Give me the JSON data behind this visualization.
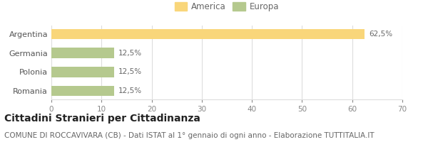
{
  "categories": [
    "Romania",
    "Polonia",
    "Germania",
    "Argentina"
  ],
  "values": [
    12.5,
    12.5,
    12.5,
    62.5
  ],
  "colors": [
    "#b5c98e",
    "#b5c98e",
    "#b5c98e",
    "#f9d67a"
  ],
  "labels": [
    "12,5%",
    "12,5%",
    "12,5%",
    "62,5%"
  ],
  "xlim": [
    0,
    70
  ],
  "xticks": [
    0,
    10,
    20,
    30,
    40,
    50,
    60,
    70
  ],
  "legend_items": [
    {
      "label": "America",
      "color": "#f9d67a"
    },
    {
      "label": "Europa",
      "color": "#b5c98e"
    }
  ],
  "title": "Cittadini Stranieri per Cittadinanza",
  "subtitle": "COMUNE DI ROCCAVIVARA (CB) - Dati ISTAT al 1° gennaio di ogni anno - Elaborazione TUTTITALIA.IT",
  "title_fontsize": 10,
  "subtitle_fontsize": 7.5,
  "bar_height": 0.55,
  "background_color": "#ffffff",
  "grid_color": "#dddddd",
  "label_fontsize": 7.5,
  "ytick_fontsize": 8,
  "xtick_fontsize": 7.5
}
